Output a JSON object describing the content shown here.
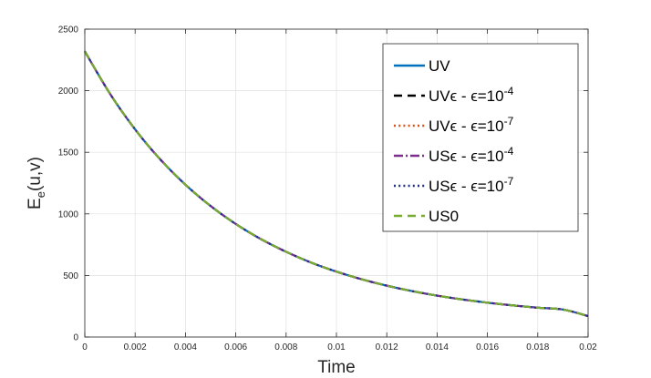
{
  "chart_data": {
    "type": "line",
    "xlabel": "Time",
    "ylabel": "E",
    "ylabel_sub": "e",
    "ylabel_args": "(u,v)",
    "xlim": [
      0,
      0.02
    ],
    "ylim": [
      0,
      2500
    ],
    "xticks": [
      0,
      0.002,
      0.004,
      0.006,
      0.008,
      0.01,
      0.012,
      0.014,
      0.016,
      0.018,
      0.02
    ],
    "xtick_labels": [
      "0",
      "0.002",
      "0.004",
      "0.006",
      "0.008",
      "0.01",
      "0.012",
      "0.014",
      "0.016",
      "0.018",
      "0.02"
    ],
    "yticks": [
      0,
      500,
      1000,
      1500,
      2000,
      2500
    ],
    "ytick_labels": [
      "0",
      "500",
      "1000",
      "1500",
      "2000",
      "2500"
    ],
    "grid": true,
    "legend_position": "top-right",
    "x": [
      0,
      0.001,
      0.002,
      0.003,
      0.004,
      0.005,
      0.006,
      0.007,
      0.008,
      0.009,
      0.01,
      0.011,
      0.012,
      0.013,
      0.014,
      0.015,
      0.016,
      0.017,
      0.018,
      0.019,
      0.02
    ],
    "series": [
      {
        "name": "UV",
        "legend": {
          "main": "UV",
          "eps": "",
          "sup": ""
        },
        "color": "#0072BD",
        "dash": "solid",
        "values": [
          2320,
          1976,
          1686,
          1442,
          1237,
          1064,
          918,
          795,
          692,
          604,
          531,
          469,
          417,
          373,
          336,
          305,
          279,
          257,
          238,
          223,
          170
        ]
      },
      {
        "name": "UVϵ - ϵ=10-4",
        "legend": {
          "main": "UV",
          "eps": "ϵ - ϵ=10",
          "sup": "-4"
        },
        "color": "#000000",
        "dash": "dashed",
        "values": [
          2320,
          1976,
          1686,
          1442,
          1237,
          1064,
          918,
          795,
          692,
          604,
          531,
          469,
          417,
          373,
          336,
          305,
          279,
          257,
          238,
          223,
          170
        ]
      },
      {
        "name": "UVϵ - ϵ=10-7",
        "legend": {
          "main": "UV",
          "eps": "ϵ - ϵ=10",
          "sup": "-7"
        },
        "color": "#D95319",
        "dash": "dotted",
        "values": [
          2320,
          1976,
          1686,
          1442,
          1237,
          1064,
          918,
          795,
          692,
          604,
          531,
          469,
          417,
          373,
          336,
          305,
          279,
          257,
          238,
          223,
          170
        ]
      },
      {
        "name": "USϵ - ϵ=10-4",
        "legend": {
          "main": "US",
          "eps": "ϵ - ϵ=10",
          "sup": "-4"
        },
        "color": "#7E2F8E",
        "dash": "dashdot",
        "values": [
          2320,
          1976,
          1686,
          1442,
          1237,
          1064,
          918,
          795,
          692,
          604,
          531,
          469,
          417,
          373,
          336,
          305,
          279,
          257,
          238,
          223,
          170
        ]
      },
      {
        "name": "USϵ - ϵ=10-7",
        "legend": {
          "main": "US",
          "eps": "ϵ - ϵ=10",
          "sup": "-7"
        },
        "color": "#1F2F8A",
        "dash": "dotted",
        "values": [
          2320,
          1976,
          1686,
          1442,
          1237,
          1064,
          918,
          795,
          692,
          604,
          531,
          469,
          417,
          373,
          336,
          305,
          279,
          257,
          238,
          223,
          170
        ]
      },
      {
        "name": "US0",
        "legend": {
          "main": "US0",
          "eps": "",
          "sup": ""
        },
        "color": "#77AC30",
        "dash": "dashed",
        "values": [
          2320,
          1976,
          1686,
          1442,
          1237,
          1064,
          918,
          795,
          692,
          604,
          531,
          469,
          417,
          373,
          336,
          305,
          279,
          257,
          238,
          223,
          170
        ]
      }
    ]
  }
}
